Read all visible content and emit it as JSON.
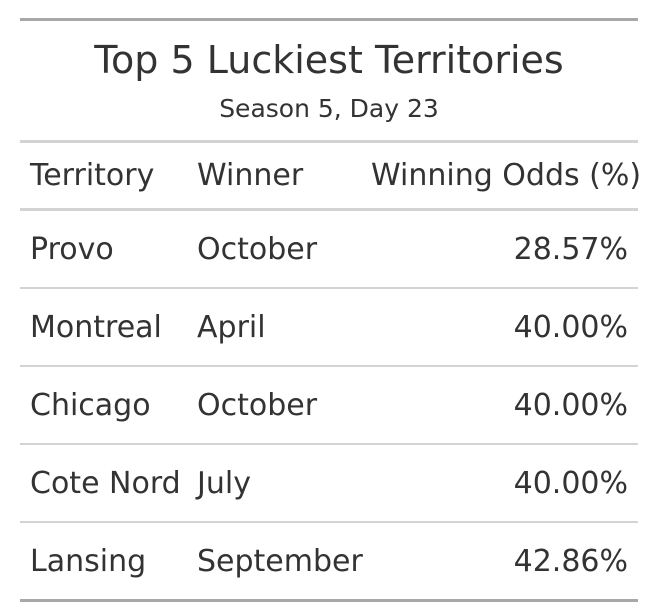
{
  "chart_data": {
    "type": "table",
    "title": "Top 5 Luckiest Territories",
    "subtitle": "Season 5, Day 23",
    "columns": [
      "Territory",
      "Winner",
      "Winning Odds (%)"
    ],
    "rows": [
      [
        "Provo",
        "October",
        "28.57%"
      ],
      [
        "Montreal",
        "April",
        "40.00%"
      ],
      [
        "Chicago",
        "October",
        "40.00%"
      ],
      [
        "Cote Nord",
        "July",
        "40.00%"
      ],
      [
        "Lansing",
        "September",
        "42.86%"
      ]
    ]
  },
  "colors": {
    "text": "#333333",
    "outer_rule": "#a8a8a8",
    "inner_rule": "#d3d3d3"
  }
}
